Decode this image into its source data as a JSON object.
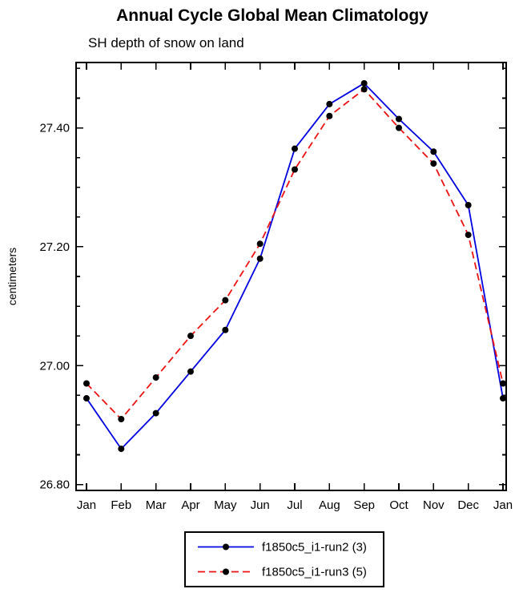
{
  "title": "Annual Cycle Global Mean Climatology",
  "subtitle": "SH depth of snow on land",
  "chart_data": {
    "type": "line",
    "categories": [
      "Jan",
      "Feb",
      "Mar",
      "Apr",
      "May",
      "Jun",
      "Jul",
      "Aug",
      "Sep",
      "Oct",
      "Nov",
      "Dec",
      "Jan"
    ],
    "ylabel": "centimeters",
    "ylim": [
      26.79,
      27.51
    ],
    "yticks": [
      26.8,
      27.0,
      27.2,
      27.4
    ],
    "ytick_labels": [
      "26.80",
      "27.00",
      "27.20",
      "27.40"
    ],
    "y_minor_step": 0.05,
    "grid": false,
    "legend_position": "bottom",
    "colors": {
      "axis": "#000000",
      "marker": "#000000",
      "legend_text": "#2121aa",
      "series1": "#0000e0",
      "series2": "#ee1111"
    },
    "series": [
      {
        "name": "f1850c5_i1-run2 (3)",
        "style": "solid",
        "values": [
          26.945,
          26.86,
          26.92,
          26.99,
          27.06,
          27.18,
          27.365,
          27.44,
          27.475,
          27.415,
          27.36,
          27.27,
          26.945
        ]
      },
      {
        "name": "f1850c5_i1-run3 (5)",
        "style": "dashed",
        "values": [
          26.97,
          26.91,
          26.98,
          27.05,
          27.11,
          27.205,
          27.33,
          27.42,
          27.465,
          27.4,
          27.34,
          27.22,
          26.97
        ]
      }
    ]
  }
}
